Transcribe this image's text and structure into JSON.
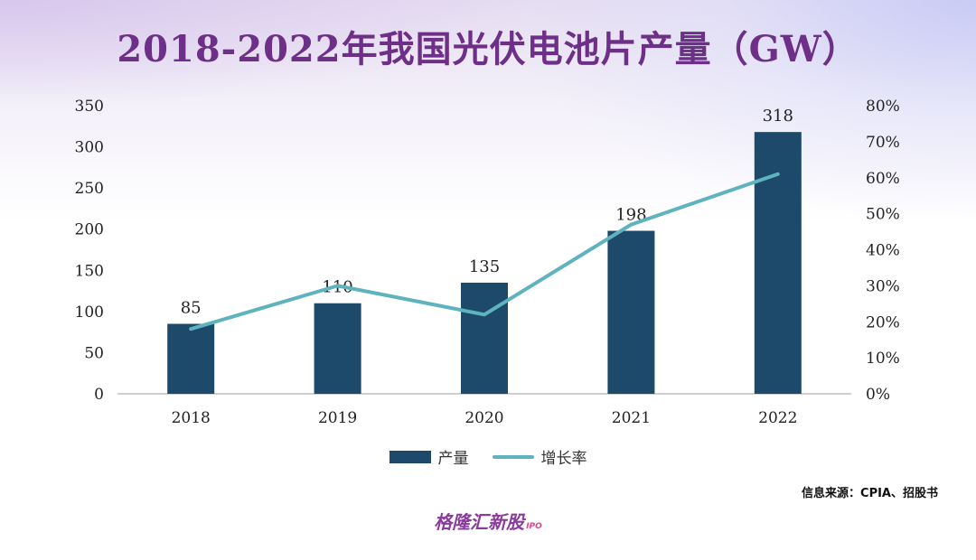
{
  "header": {
    "title": "2018-2022年我国光伏电池片产量（GW）"
  },
  "chart_data": {
    "type": "bar",
    "title": "2018-2022年我国光伏电池片产量（GW）",
    "categories": [
      "2018",
      "2019",
      "2020",
      "2021",
      "2022"
    ],
    "series": [
      {
        "name": "产量",
        "type": "bar",
        "axis": "left",
        "values": [
          85,
          110,
          135,
          198,
          318
        ],
        "color": "#1d4a6b"
      },
      {
        "name": "增长率",
        "type": "line",
        "axis": "right",
        "values": [
          18,
          30,
          22,
          47,
          61
        ],
        "color": "#5fb3bf"
      }
    ],
    "data_labels": [
      "85",
      "110",
      "135",
      "198",
      "318"
    ],
    "y_left": {
      "lim": [
        0,
        350
      ],
      "ticks": [
        "0",
        "50",
        "100",
        "150",
        "200",
        "250",
        "300",
        "350"
      ]
    },
    "y_right": {
      "lim": [
        0,
        80
      ],
      "ticks": [
        "0%",
        "10%",
        "20%",
        "30%",
        "40%",
        "50%",
        "60%",
        "70%",
        "80%"
      ]
    },
    "grid": false,
    "legend": "bottom-center"
  },
  "legend": {
    "bar_label": "产量",
    "line_label": "增长率"
  },
  "footer": {
    "source": "信息来源：CPIA、招股书",
    "brand": "格隆汇新股",
    "brand_sub": "IPO"
  }
}
